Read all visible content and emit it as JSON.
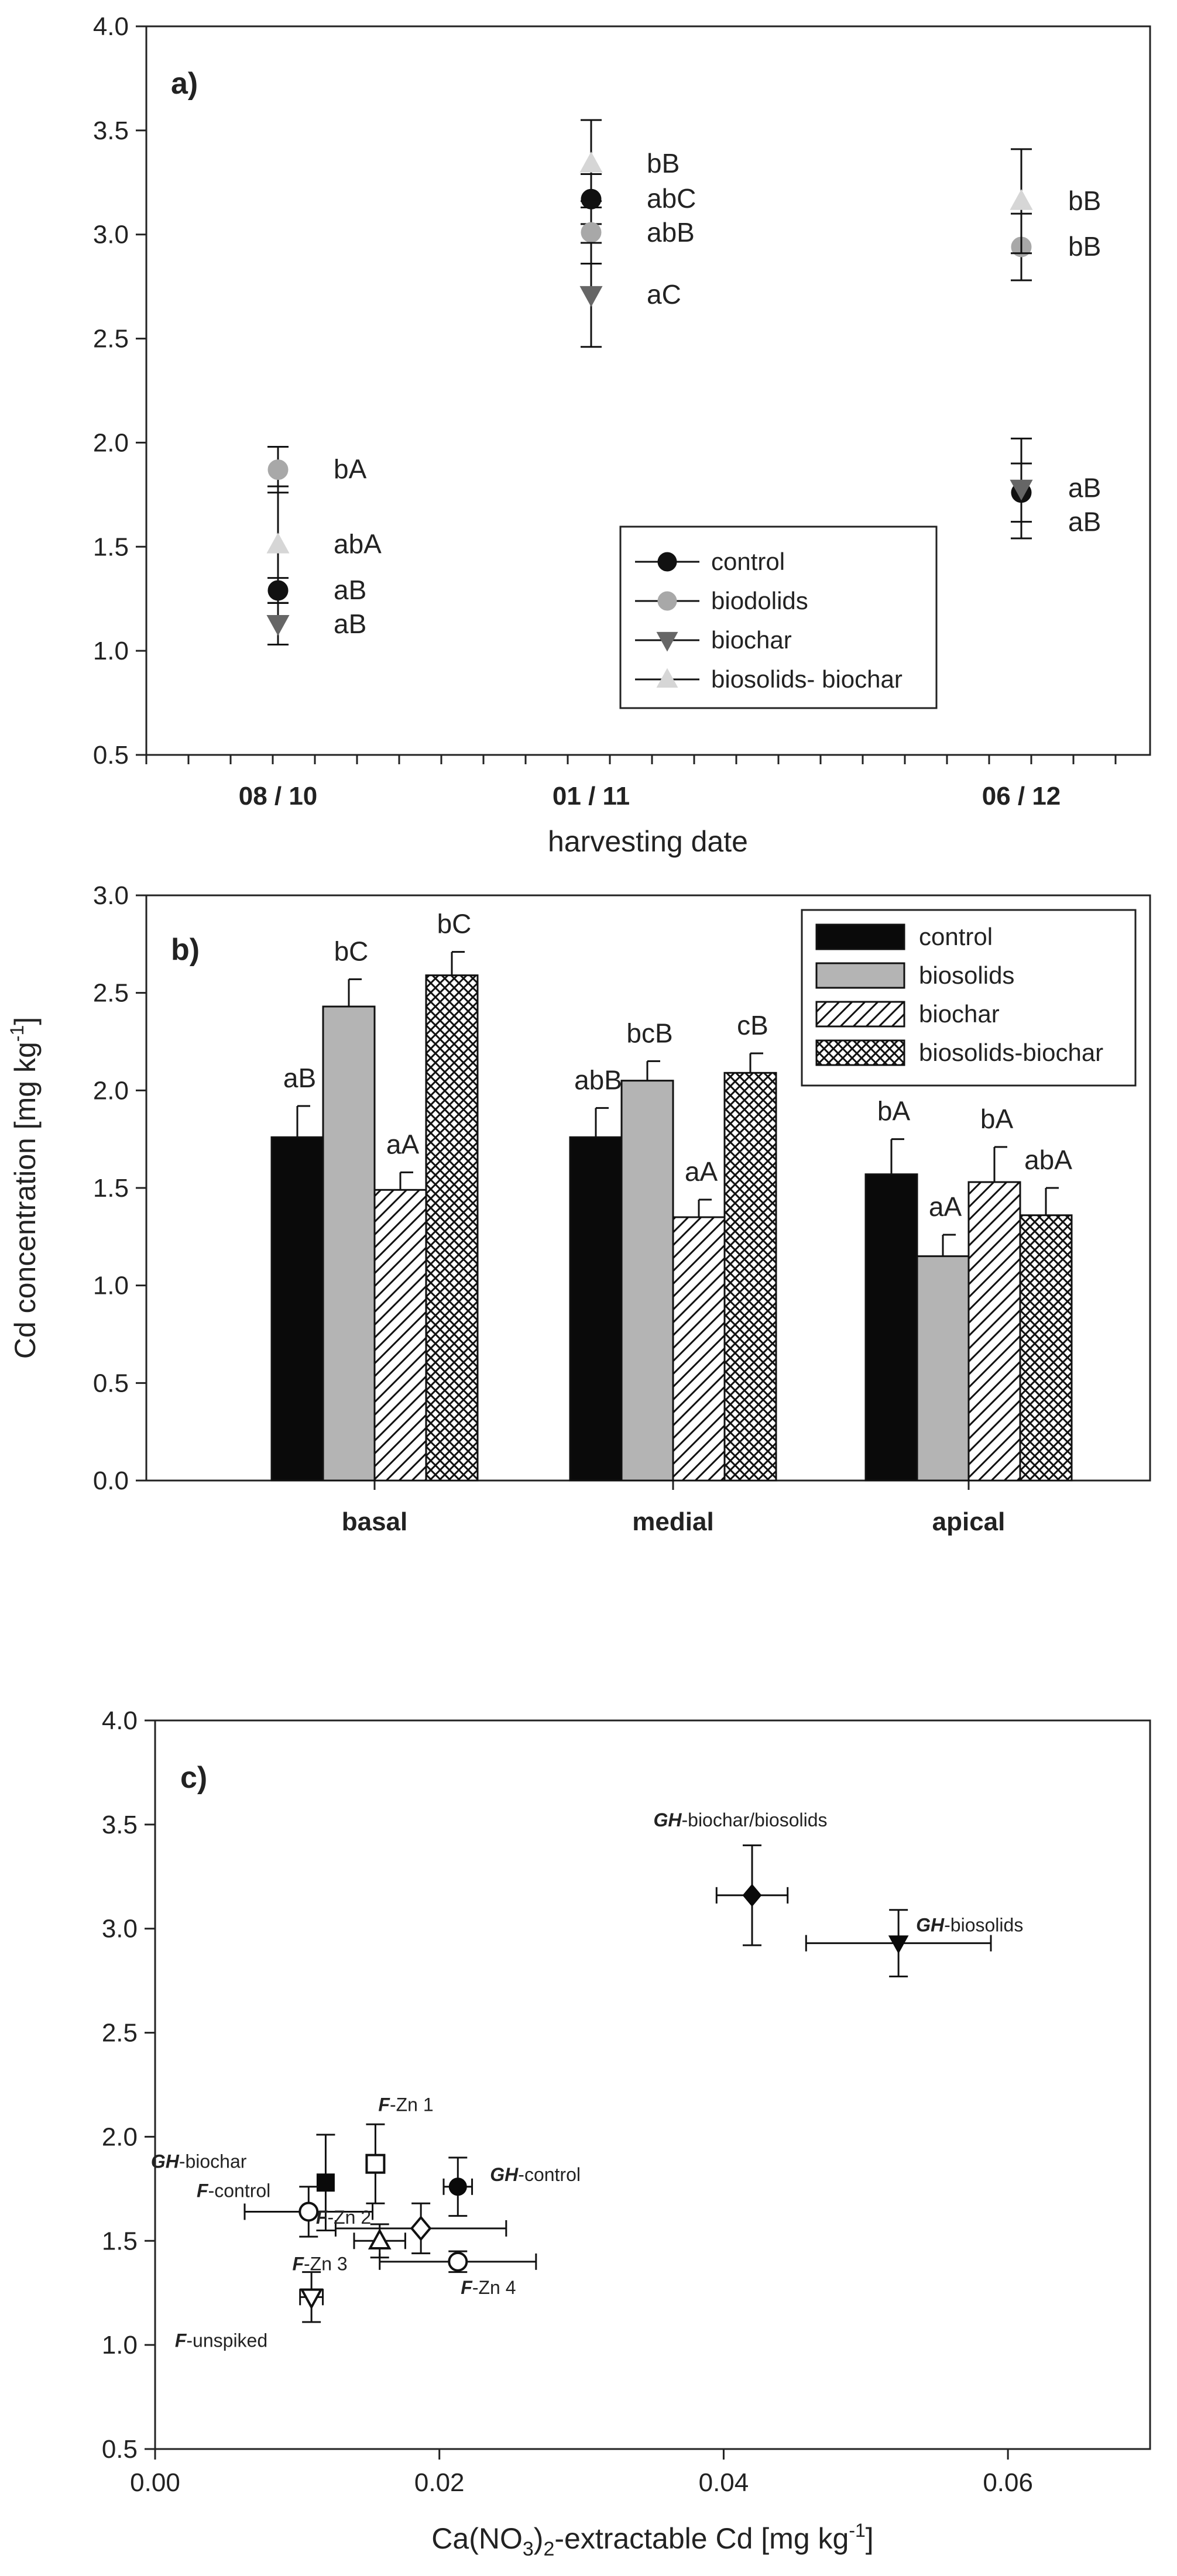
{
  "chart_data": [
    {
      "type": "scatter",
      "panel_label": "a)",
      "xlabel": "harvesting date",
      "ylabel": "",
      "ylim": [
        0.5,
        4.0
      ],
      "yticks": [
        "0.5",
        "1.0",
        "1.5",
        "2.0",
        "2.5",
        "3.0",
        "3.5",
        "4.0"
      ],
      "categories": [
        "08 / 10",
        "01 / 11",
        "06 / 12"
      ],
      "legend_position": "bottom-right",
      "series": [
        {
          "name": "control",
          "color": "#111111",
          "marker": "circle",
          "values": [
            1.29,
            3.17,
            1.76
          ],
          "errors": [
            0.06,
            0.12,
            0.14
          ],
          "labels": [
            "aB",
            "abC",
            "aB"
          ]
        },
        {
          "name": "biodolids",
          "color": "#a8a8a8",
          "marker": "circle",
          "values": [
            1.87,
            3.01,
            2.94
          ],
          "errors": [
            0.11,
            0.15,
            0.16
          ],
          "labels": [
            "bA",
            "abB",
            "bB"
          ]
        },
        {
          "name": "biochar",
          "color": "#666666",
          "marker": "triangle-down",
          "values": [
            1.13,
            2.71,
            1.78
          ],
          "errors": [
            0.1,
            0.25,
            0.24
          ],
          "labels": [
            "aB",
            "aC",
            "aB"
          ]
        },
        {
          "name": "biosolids- biochar",
          "color": "#d6d6d6",
          "marker": "triangle-up",
          "values": [
            1.51,
            3.34,
            3.16
          ],
          "errors": [
            0.28,
            0.21,
            0.25
          ],
          "labels": [
            "abA",
            "bB",
            "bB"
          ]
        }
      ]
    },
    {
      "type": "bar",
      "panel_label": "b)",
      "xlabel": "",
      "ylabel": "Cd concentration [mg kg",
      "ylabel_sup": "-1",
      "ylabel_end": "]",
      "ylim": [
        0.0,
        3.0
      ],
      "yticks": [
        "0.0",
        "0.5",
        "1.0",
        "1.5",
        "2.0",
        "2.5",
        "3.0"
      ],
      "categories": [
        "basal",
        "medial",
        "apical"
      ],
      "legend_position": "top-right",
      "series": [
        {
          "name": "control",
          "fill": "solid-black",
          "values": [
            1.76,
            1.76,
            1.57
          ],
          "errors": [
            0.16,
            0.15,
            0.18
          ],
          "labels": [
            "aB",
            "abB",
            "bA"
          ]
        },
        {
          "name": "biosolids",
          "fill": "solid-gray",
          "values": [
            2.43,
            2.05,
            1.15
          ],
          "errors": [
            0.14,
            0.1,
            0.11
          ],
          "labels": [
            "bC",
            "bcB",
            "aA"
          ]
        },
        {
          "name": "biochar",
          "fill": "diagonal-hatch",
          "values": [
            1.49,
            1.35,
            1.53
          ],
          "errors": [
            0.09,
            0.09,
            0.18
          ],
          "labels": [
            "aA",
            "aA",
            "bA"
          ]
        },
        {
          "name": "biosolids-biochar",
          "fill": "crosshatch",
          "values": [
            2.59,
            2.09,
            1.36
          ],
          "errors": [
            0.12,
            0.1,
            0.14
          ],
          "labels": [
            "bC",
            "cB",
            "abA"
          ]
        }
      ]
    },
    {
      "type": "scatter",
      "panel_label": "c)",
      "xlabel_pre": "Ca(NO",
      "xlabel_sub": "3",
      "xlabel_mid": ")",
      "xlabel_sub2": "2",
      "xlabel_post": "-extractable Cd [mg kg",
      "xlabel_sup": "-1",
      "xlabel_end": "]",
      "ylabel": "",
      "xlim": [
        0.0,
        0.07
      ],
      "ylim": [
        0.5,
        4.0
      ],
      "xticks": [
        "0.00",
        "0.02",
        "0.04",
        "0.06"
      ],
      "yticks": [
        "0.5",
        "1.0",
        "1.5",
        "2.0",
        "2.5",
        "3.0",
        "3.5",
        "4.0"
      ],
      "points": [
        {
          "bold": "GH",
          "name": "-biochar/biosolids",
          "x": 0.042,
          "y": 3.16,
          "xerr": 0.0025,
          "yerr": 0.24,
          "marker": "diamond-filled"
        },
        {
          "bold": "GH",
          "name": "-biosolids",
          "x": 0.0523,
          "y": 2.93,
          "xerr": 0.0065,
          "yerr": 0.16,
          "marker": "triangle-down-filled"
        },
        {
          "bold": "GH",
          "name": "-biochar",
          "x": 0.012,
          "y": 1.78,
          "xerr": 0.0005,
          "yerr": 0.23,
          "marker": "square-filled"
        },
        {
          "bold": "GH",
          "name": "-control",
          "x": 0.0213,
          "y": 1.76,
          "xerr": 0.001,
          "yerr": 0.14,
          "marker": "circle-filled"
        },
        {
          "bold": "F",
          "name": "-Zn 1",
          "x": 0.0155,
          "y": 1.87,
          "xerr": 0.0006,
          "yerr": 0.19,
          "marker": "square-open"
        },
        {
          "bold": "F",
          "name": "-control",
          "x": 0.0108,
          "y": 1.64,
          "xerr": 0.0045,
          "yerr": 0.12,
          "marker": "circle-open"
        },
        {
          "bold": "F",
          "name": "-Zn 2",
          "x": 0.0187,
          "y": 1.56,
          "xerr": 0.006,
          "yerr": 0.12,
          "marker": "diamond-open"
        },
        {
          "bold": "F",
          "name": "-Zn 3",
          "x": 0.0158,
          "y": 1.5,
          "xerr": 0.0018,
          "yerr": 0.08,
          "marker": "triangle-up-open"
        },
        {
          "bold": "F",
          "name": "-Zn 4",
          "x": 0.0213,
          "y": 1.4,
          "xerr": 0.0055,
          "yerr": 0.05,
          "marker": "circle-open"
        },
        {
          "bold": "F",
          "name": "-unspiked",
          "x": 0.011,
          "y": 1.23,
          "xerr": 0.0008,
          "yerr": 0.12,
          "marker": "triangle-down-open"
        }
      ]
    }
  ]
}
